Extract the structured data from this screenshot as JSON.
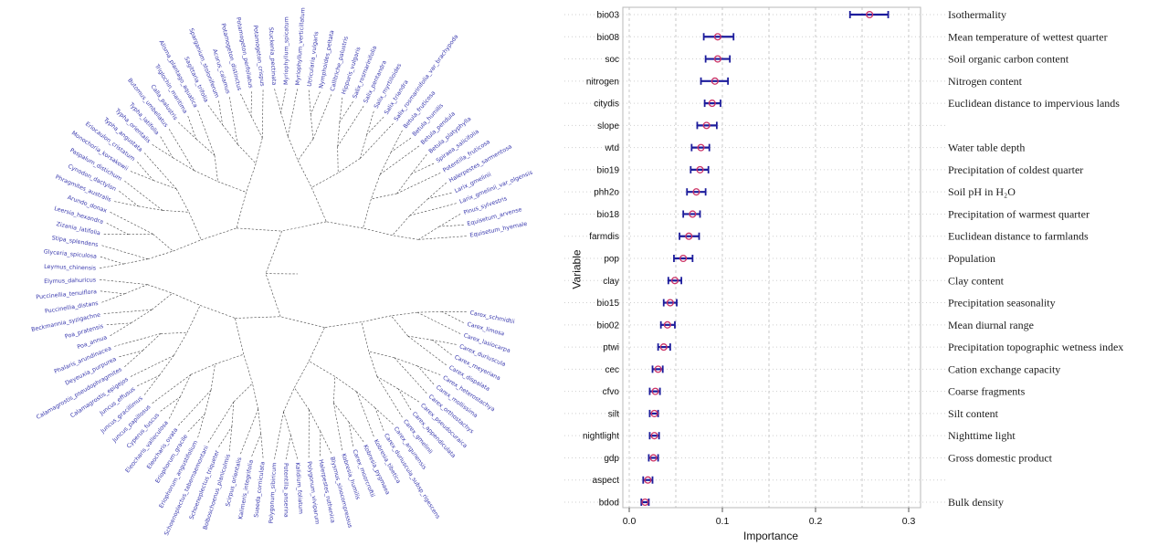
{
  "figure": {
    "description_left": "circular phylogenetic tree of wetland plant species",
    "description_right": "variable importance dot plot with error bars",
    "background": "#ffffff"
  },
  "tree": {
    "tip_label_color": "#3a3aae",
    "edge_color": "#444444",
    "tips": [
      "Carex_schmidtii",
      "Carex_limosa",
      "Carex_lasiocarpa",
      "Carex_duriuscula",
      "Carex_meyeriana",
      "Carex_dispalata",
      "Carex_heterostachya",
      "Carex_mollissima",
      "Carex_orthostachys",
      "Carex_pseudocuraica",
      "Carex_appendiculata",
      "Carex_gmelinii",
      "Carex_argunensis",
      "Carex_duriuscula_subsp_rigescens",
      "Kobresia_tibetica",
      "Kobresia_pygmaea",
      "Carex_moorcroftii",
      "Kobresia_humilis",
      "Blysmus_sinocompressus",
      "Halerpestes_ruthenica",
      "Polygonum_viviparum",
      "Kalidium_foliatum",
      "Potentilla_anserina",
      "Polygonum_sibiricum",
      "Suaeda_corniculata",
      "Kalimeris_integrifolia",
      "Scirpus_orientalis",
      "Bolboschoenus_planiculmis",
      "Schoenoplectus_triqueter",
      "Schoenoplectus_tabernaemontani",
      "Eriophorum_angustifolium",
      "Eriophorum_gracile",
      "Eleocharis_ovata",
      "Eleocharis_valleculosa",
      "Cyperus_fuscus",
      "Juncus_papillosus",
      "Juncus_gracillimus",
      "Juncus_effusus",
      "Calamagrostis_epigejos",
      "Calamagrostis_pseudophragmites",
      "Deyeuxia_purpurea",
      "Phalaris_arundinacea",
      "Poa_annua",
      "Poa_pratensis",
      "Beckmannia_syzigachne",
      "Puccinellia_distans",
      "Puccinellia_tenuiflora",
      "Elymus_dahuricus",
      "Leymus_chinensis",
      "Glyceria_spiculosa",
      "Stipa_splendens",
      "Zizania_latifolia",
      "Leersia_hexandra",
      "Arundo_donax",
      "Phragmites_australis",
      "Cynodon_dactylon",
      "Paspalum_distichum",
      "Monochoria_korsakowii",
      "Eriocaulon_cristatum",
      "Typha_angustata",
      "Typha_orientalis",
      "Typha_latifolia",
      "Butomus_umbellatus",
      "Calla_palustris",
      "Triglochin_maritima",
      "Alisma_plantago_aquatica",
      "Sagittaria_trifolia",
      "Sparganium_stoloniferum",
      "Acorus_calamus",
      "Potamogeton_distinctus",
      "Potamogeton_perfoliatus",
      "Potamogeton_crispus",
      "Stuckenia_pectinata",
      "Myriophyllum_spicatum",
      "Myriophyllum_verticillatum",
      "Utricularia_vulgaris",
      "Nymphoides_peltata",
      "Callitriche_palustris",
      "Hippuris_vulgaris",
      "Salix_rosmarinifolia",
      "Salix_pentandra",
      "Salix_myrtilloides",
      "Salix_triandra",
      "Salix_rosmarinifolia_var_brachypoda",
      "Betula_fruticosa",
      "Betula_humilis",
      "Betula_pendula",
      "Betula_platyphylla",
      "Spiraea_salicifolia",
      "Potentilla_fruticosa",
      "Halerpestes_sarmentosa",
      "Larix_gmelinii",
      "Larix_gmelinii_var_olgensis",
      "Pinus_sylvestris",
      "Equisetum_arvense",
      "Equisetum_hyemale"
    ]
  },
  "chart_data": {
    "type": "scatter",
    "orientation": "horizontal dot plot with error bars",
    "xlabel": "Importance",
    "ylabel": "Variable",
    "xlim": [
      0.0,
      0.32
    ],
    "xticks": [
      "0.0",
      "0.1",
      "0.2",
      "0.3"
    ],
    "xtick_values": [
      0.0,
      0.1,
      0.2,
      0.3
    ],
    "grid": "dashed vertical gridlines every 0.05, dotted row leaders",
    "point_color": "#cc3366",
    "bar_color": "#1c1c9c",
    "rows": [
      {
        "var": "bio03",
        "importance": 0.258,
        "ci_low": 0.237,
        "ci_high": 0.278,
        "description": "Isothermality"
      },
      {
        "var": "bio08",
        "importance": 0.095,
        "ci_low": 0.08,
        "ci_high": 0.112,
        "description": "Mean temperature  of wettest quarter"
      },
      {
        "var": "soc",
        "importance": 0.095,
        "ci_low": 0.082,
        "ci_high": 0.108,
        "description": "Soil organic carbon content"
      },
      {
        "var": "nitrogen",
        "importance": 0.092,
        "ci_low": 0.077,
        "ci_high": 0.106,
        "description": "Nitrogen content"
      },
      {
        "var": "citydis",
        "importance": 0.089,
        "ci_low": 0.081,
        "ci_high": 0.098,
        "description": "Euclidean distance to impervious lands"
      },
      {
        "var": "slope",
        "importance": 0.083,
        "ci_low": 0.073,
        "ci_high": 0.094,
        "description": ""
      },
      {
        "var": "wtd",
        "importance": 0.077,
        "ci_low": 0.067,
        "ci_high": 0.086,
        "description": "Water table depth"
      },
      {
        "var": "bio19",
        "importance": 0.076,
        "ci_low": 0.066,
        "ci_high": 0.085,
        "description": "Precipitation  of coldest quarter"
      },
      {
        "var": "phh2o",
        "importance": 0.072,
        "ci_low": 0.062,
        "ci_high": 0.082,
        "description": "Soil pH in H₂O"
      },
      {
        "var": "bio18",
        "importance": 0.068,
        "ci_low": 0.058,
        "ci_high": 0.076,
        "description": "Precipitation  of warmest quarter"
      },
      {
        "var": "farmdis",
        "importance": 0.064,
        "ci_low": 0.054,
        "ci_high": 0.075,
        "description": "Euclidean distance to farmlands"
      },
      {
        "var": "pop",
        "importance": 0.058,
        "ci_low": 0.048,
        "ci_high": 0.068,
        "description": "Population"
      },
      {
        "var": "clay",
        "importance": 0.049,
        "ci_low": 0.042,
        "ci_high": 0.056,
        "description": "Clay content"
      },
      {
        "var": "bio15",
        "importance": 0.044,
        "ci_low": 0.037,
        "ci_high": 0.051,
        "description": "Precipitation  seasonality"
      },
      {
        "var": "bio02",
        "importance": 0.041,
        "ci_low": 0.034,
        "ci_high": 0.049,
        "description": "Mean diurnal  range"
      },
      {
        "var": "ptwi",
        "importance": 0.037,
        "ci_low": 0.031,
        "ci_high": 0.044,
        "description": "Precipitation  topographic wetness index"
      },
      {
        "var": "cec",
        "importance": 0.031,
        "ci_low": 0.025,
        "ci_high": 0.036,
        "description": "Cation exchange capacity"
      },
      {
        "var": "cfvo",
        "importance": 0.028,
        "ci_low": 0.022,
        "ci_high": 0.033,
        "description": "Coarse fragments"
      },
      {
        "var": "silt",
        "importance": 0.027,
        "ci_low": 0.022,
        "ci_high": 0.031,
        "description": "Silt content"
      },
      {
        "var": "nightlight",
        "importance": 0.027,
        "ci_low": 0.022,
        "ci_high": 0.032,
        "description": "Nighttime light"
      },
      {
        "var": "gdp",
        "importance": 0.026,
        "ci_low": 0.021,
        "ci_high": 0.031,
        "description": "Gross domestic product"
      },
      {
        "var": "aspect",
        "importance": 0.02,
        "ci_low": 0.015,
        "ci_high": 0.025,
        "description": ""
      },
      {
        "var": "bdod",
        "importance": 0.017,
        "ci_low": 0.013,
        "ci_high": 0.021,
        "description": "Bulk density"
      }
    ]
  }
}
